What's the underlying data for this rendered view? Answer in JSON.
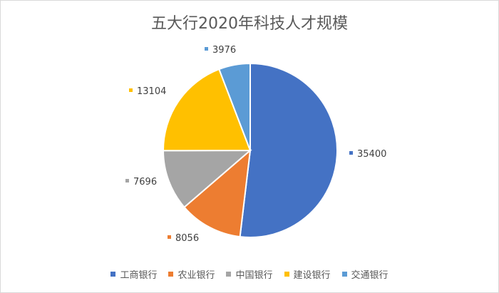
{
  "chart_data": {
    "type": "pie",
    "title": "五大行2020年科技人才规模",
    "categories": [
      "工商银行",
      "农业银行",
      "中国银行",
      "建设银行",
      "交通银行"
    ],
    "values": [
      35400,
      8056,
      7696,
      13104,
      3976
    ],
    "data_labels": [
      "35400",
      "8056",
      "7696",
      "13104",
      "3976"
    ],
    "colors": [
      "#4472c4",
      "#ed7d31",
      "#a5a5a5",
      "#ffc000",
      "#5b9bd5"
    ],
    "legend_position": "bottom",
    "start_angle": "12 o'clock, clockwise"
  }
}
